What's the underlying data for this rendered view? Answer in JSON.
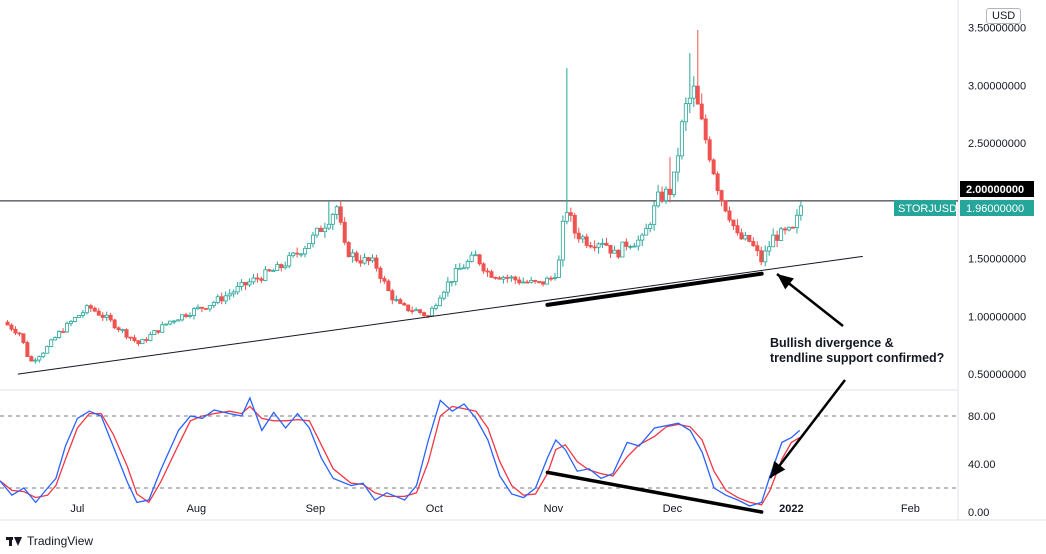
{
  "chart_data": {
    "type": "candlestick",
    "symbol_label": "STORJUSD",
    "currency": "USD",
    "last_price_label": "1.96000000",
    "horizontal_line_label": "2.00000000",
    "horizontal_line_value": 2.0,
    "price_ylim": [
      0.38,
      3.74
    ],
    "price_ticks": [
      {
        "label": "3.50000000",
        "value": 3.5
      },
      {
        "label": "3.00000000",
        "value": 3.0
      },
      {
        "label": "2.50000000",
        "value": 2.5
      },
      {
        "label": "1.50000000",
        "value": 1.5
      },
      {
        "label": "1.00000000",
        "value": 1.0
      },
      {
        "label": "0.50000000",
        "value": 0.5
      }
    ],
    "x_labels": [
      "Jul",
      "Aug",
      "Sep",
      "Oct",
      "Nov",
      "Dec",
      "2022",
      "Feb"
    ],
    "x_label_positions": [
      0.5,
      1.5,
      2.5,
      3.5,
      4.5,
      5.5,
      6.5,
      7.5
    ],
    "x_range": [
      -0.15,
      7.9
    ],
    "price_series": [
      {
        "t": -0.12,
        "v": 0.95
      },
      {
        "t": 0.02,
        "v": 0.85
      },
      {
        "t": 0.1,
        "v": 0.6
      },
      {
        "t": 0.22,
        "v": 0.7
      },
      {
        "t": 0.35,
        "v": 0.86
      },
      {
        "t": 0.5,
        "v": 1.0
      },
      {
        "t": 0.6,
        "v": 1.08
      },
      {
        "t": 0.75,
        "v": 0.98
      },
      {
        "t": 0.92,
        "v": 0.84
      },
      {
        "t": 1.02,
        "v": 0.76
      },
      {
        "t": 1.12,
        "v": 0.84
      },
      {
        "t": 1.28,
        "v": 0.96
      },
      {
        "t": 1.45,
        "v": 1.04
      },
      {
        "t": 1.6,
        "v": 1.1
      },
      {
        "t": 1.75,
        "v": 1.18
      },
      {
        "t": 1.9,
        "v": 1.27
      },
      {
        "t": 2.05,
        "v": 1.35
      },
      {
        "t": 2.2,
        "v": 1.42
      },
      {
        "t": 2.35,
        "v": 1.55
      },
      {
        "t": 2.48,
        "v": 1.68
      },
      {
        "t": 2.6,
        "v": 1.83
      },
      {
        "t": 2.68,
        "v": 1.95
      },
      {
        "t": 2.75,
        "v": 1.58
      },
      {
        "t": 2.85,
        "v": 1.5
      },
      {
        "t": 3.0,
        "v": 1.46
      },
      {
        "t": 3.12,
        "v": 1.2
      },
      {
        "t": 3.22,
        "v": 1.08
      },
      {
        "t": 3.35,
        "v": 1.05
      },
      {
        "t": 3.45,
        "v": 1.0
      },
      {
        "t": 3.55,
        "v": 1.2
      },
      {
        "t": 3.7,
        "v": 1.4
      },
      {
        "t": 3.85,
        "v": 1.52
      },
      {
        "t": 3.95,
        "v": 1.38
      },
      {
        "t": 4.1,
        "v": 1.34
      },
      {
        "t": 4.25,
        "v": 1.3
      },
      {
        "t": 4.38,
        "v": 1.28
      },
      {
        "t": 4.5,
        "v": 1.34
      },
      {
        "t": 4.55,
        "v": 1.48
      },
      {
        "t": 4.6,
        "v": 1.97
      },
      {
        "t": 4.68,
        "v": 1.73
      },
      {
        "t": 4.8,
        "v": 1.64
      },
      {
        "t": 4.92,
        "v": 1.66
      },
      {
        "t": 5.02,
        "v": 1.53
      },
      {
        "t": 5.12,
        "v": 1.64
      },
      {
        "t": 5.25,
        "v": 1.66
      },
      {
        "t": 5.38,
        "v": 2.02
      },
      {
        "t": 5.5,
        "v": 2.1
      },
      {
        "t": 5.6,
        "v": 2.78
      },
      {
        "t": 5.68,
        "v": 2.95
      },
      {
        "t": 5.75,
        "v": 2.65
      },
      {
        "t": 5.82,
        "v": 2.38
      },
      {
        "t": 5.9,
        "v": 2.05
      },
      {
        "t": 5.98,
        "v": 1.88
      },
      {
        "t": 6.05,
        "v": 1.68
      },
      {
        "t": 6.15,
        "v": 1.65
      },
      {
        "t": 6.25,
        "v": 1.48
      },
      {
        "t": 6.35,
        "v": 1.69
      },
      {
        "t": 6.45,
        "v": 1.72
      },
      {
        "t": 6.52,
        "v": 1.74
      },
      {
        "t": 6.58,
        "v": 1.96
      }
    ],
    "oscillator": {
      "ticks": [
        {
          "label": "80.00",
          "value": 80
        },
        {
          "label": "40.00",
          "value": 40
        },
        {
          "label": "0.00",
          "value": 0
        }
      ],
      "ylim": [
        -5,
        100
      ],
      "dashed_levels": [
        80,
        20
      ],
      "series_colors": {
        "k": "#2962ff",
        "d": "#f23645"
      },
      "k": [
        {
          "t": -0.15,
          "v": 26
        },
        {
          "t": -0.05,
          "v": 14
        },
        {
          "t": 0.05,
          "v": 20
        },
        {
          "t": 0.15,
          "v": 8
        },
        {
          "t": 0.25,
          "v": 20
        },
        {
          "t": 0.32,
          "v": 28
        },
        {
          "t": 0.4,
          "v": 55
        },
        {
          "t": 0.5,
          "v": 78
        },
        {
          "t": 0.6,
          "v": 84
        },
        {
          "t": 0.7,
          "v": 80
        },
        {
          "t": 0.8,
          "v": 55
        },
        {
          "t": 0.92,
          "v": 25
        },
        {
          "t": 1.0,
          "v": 8
        },
        {
          "t": 1.1,
          "v": 10
        },
        {
          "t": 1.2,
          "v": 35
        },
        {
          "t": 1.35,
          "v": 68
        },
        {
          "t": 1.45,
          "v": 80
        },
        {
          "t": 1.55,
          "v": 78
        },
        {
          "t": 1.65,
          "v": 85
        },
        {
          "t": 1.78,
          "v": 82
        },
        {
          "t": 1.88,
          "v": 80
        },
        {
          "t": 1.95,
          "v": 95
        },
        {
          "t": 2.05,
          "v": 68
        },
        {
          "t": 2.15,
          "v": 83
        },
        {
          "t": 2.25,
          "v": 70
        },
        {
          "t": 2.35,
          "v": 82
        },
        {
          "t": 2.45,
          "v": 70
        },
        {
          "t": 2.55,
          "v": 45
        },
        {
          "t": 2.65,
          "v": 28
        },
        {
          "t": 2.8,
          "v": 22
        },
        {
          "t": 2.9,
          "v": 24
        },
        {
          "t": 3.0,
          "v": 10
        },
        {
          "t": 3.1,
          "v": 16
        },
        {
          "t": 3.25,
          "v": 10
        },
        {
          "t": 3.35,
          "v": 22
        },
        {
          "t": 3.45,
          "v": 60
        },
        {
          "t": 3.55,
          "v": 93
        },
        {
          "t": 3.65,
          "v": 84
        },
        {
          "t": 3.75,
          "v": 90
        },
        {
          "t": 3.85,
          "v": 78
        },
        {
          "t": 3.95,
          "v": 60
        },
        {
          "t": 4.05,
          "v": 30
        },
        {
          "t": 4.15,
          "v": 15
        },
        {
          "t": 4.25,
          "v": 12
        },
        {
          "t": 4.35,
          "v": 20
        },
        {
          "t": 4.45,
          "v": 45
        },
        {
          "t": 4.52,
          "v": 60
        },
        {
          "t": 4.6,
          "v": 52
        },
        {
          "t": 4.7,
          "v": 34
        },
        {
          "t": 4.8,
          "v": 36
        },
        {
          "t": 4.9,
          "v": 28
        },
        {
          "t": 5.0,
          "v": 32
        },
        {
          "t": 5.12,
          "v": 58
        },
        {
          "t": 5.22,
          "v": 55
        },
        {
          "t": 5.35,
          "v": 70
        },
        {
          "t": 5.45,
          "v": 72
        },
        {
          "t": 5.55,
          "v": 74
        },
        {
          "t": 5.65,
          "v": 68
        },
        {
          "t": 5.75,
          "v": 50
        },
        {
          "t": 5.85,
          "v": 20
        },
        {
          "t": 5.95,
          "v": 14
        },
        {
          "t": 6.05,
          "v": 10
        },
        {
          "t": 6.15,
          "v": 5
        },
        {
          "t": 6.25,
          "v": 8
        },
        {
          "t": 6.32,
          "v": 30
        },
        {
          "t": 6.42,
          "v": 58
        },
        {
          "t": 6.5,
          "v": 62
        },
        {
          "t": 6.57,
          "v": 68
        }
      ],
      "d": [
        {
          "t": -0.15,
          "v": 26
        },
        {
          "t": -0.05,
          "v": 18
        },
        {
          "t": 0.05,
          "v": 17
        },
        {
          "t": 0.15,
          "v": 12
        },
        {
          "t": 0.25,
          "v": 14
        },
        {
          "t": 0.32,
          "v": 22
        },
        {
          "t": 0.4,
          "v": 44
        },
        {
          "t": 0.5,
          "v": 70
        },
        {
          "t": 0.6,
          "v": 82
        },
        {
          "t": 0.7,
          "v": 82
        },
        {
          "t": 0.8,
          "v": 65
        },
        {
          "t": 0.92,
          "v": 38
        },
        {
          "t": 1.0,
          "v": 15
        },
        {
          "t": 1.1,
          "v": 8
        },
        {
          "t": 1.2,
          "v": 25
        },
        {
          "t": 1.35,
          "v": 56
        },
        {
          "t": 1.45,
          "v": 76
        },
        {
          "t": 1.55,
          "v": 80
        },
        {
          "t": 1.65,
          "v": 82
        },
        {
          "t": 1.78,
          "v": 84
        },
        {
          "t": 1.88,
          "v": 82
        },
        {
          "t": 1.95,
          "v": 88
        },
        {
          "t": 2.05,
          "v": 78
        },
        {
          "t": 2.15,
          "v": 76
        },
        {
          "t": 2.25,
          "v": 76
        },
        {
          "t": 2.35,
          "v": 77
        },
        {
          "t": 2.45,
          "v": 76
        },
        {
          "t": 2.55,
          "v": 56
        },
        {
          "t": 2.65,
          "v": 36
        },
        {
          "t": 2.8,
          "v": 24
        },
        {
          "t": 2.9,
          "v": 23
        },
        {
          "t": 3.0,
          "v": 16
        },
        {
          "t": 3.1,
          "v": 13
        },
        {
          "t": 3.25,
          "v": 13
        },
        {
          "t": 3.35,
          "v": 16
        },
        {
          "t": 3.45,
          "v": 42
        },
        {
          "t": 3.55,
          "v": 80
        },
        {
          "t": 3.65,
          "v": 88
        },
        {
          "t": 3.75,
          "v": 86
        },
        {
          "t": 3.85,
          "v": 84
        },
        {
          "t": 3.95,
          "v": 70
        },
        {
          "t": 4.05,
          "v": 42
        },
        {
          "t": 4.15,
          "v": 22
        },
        {
          "t": 4.25,
          "v": 14
        },
        {
          "t": 4.35,
          "v": 15
        },
        {
          "t": 4.45,
          "v": 32
        },
        {
          "t": 4.52,
          "v": 52
        },
        {
          "t": 4.6,
          "v": 56
        },
        {
          "t": 4.7,
          "v": 42
        },
        {
          "t": 4.8,
          "v": 35
        },
        {
          "t": 4.9,
          "v": 32
        },
        {
          "t": 5.0,
          "v": 30
        },
        {
          "t": 5.12,
          "v": 46
        },
        {
          "t": 5.22,
          "v": 56
        },
        {
          "t": 5.35,
          "v": 63
        },
        {
          "t": 5.45,
          "v": 71
        },
        {
          "t": 5.55,
          "v": 73
        },
        {
          "t": 5.65,
          "v": 71
        },
        {
          "t": 5.75,
          "v": 60
        },
        {
          "t": 5.85,
          "v": 34
        },
        {
          "t": 5.95,
          "v": 18
        },
        {
          "t": 6.05,
          "v": 12
        },
        {
          "t": 6.15,
          "v": 8
        },
        {
          "t": 6.25,
          "v": 6
        },
        {
          "t": 6.32,
          "v": 18
        },
        {
          "t": 6.42,
          "v": 44
        },
        {
          "t": 6.5,
          "v": 58
        },
        {
          "t": 6.57,
          "v": 62
        }
      ]
    },
    "trendline": [
      {
        "t": 0.0,
        "v": 0.5
      },
      {
        "t": 7.1,
        "v": 1.52
      }
    ],
    "price_divergence_line": [
      {
        "t": 4.45,
        "v": 1.1
      },
      {
        "t": 6.25,
        "v": 1.37
      }
    ],
    "oscillator_divergence_line": [
      {
        "t": 4.45,
        "v": 33
      },
      {
        "t": 6.25,
        "v": 0
      }
    ],
    "annotation": {
      "lines": [
        "Bullish divergence &",
        "trendline support confirmed?"
      ]
    },
    "colors": {
      "up": "#26a69a",
      "down": "#ef5350",
      "symbol_badge": "#26a69a",
      "line_badge": "#000000"
    }
  },
  "branding": {
    "name": "TradingView"
  }
}
